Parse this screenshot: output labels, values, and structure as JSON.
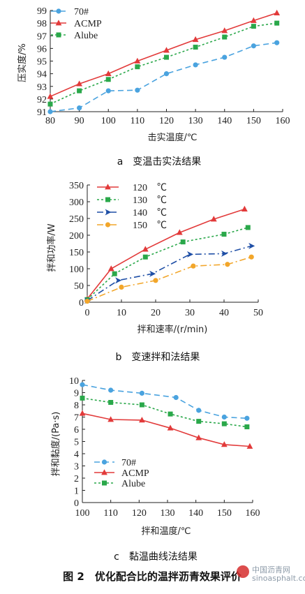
{
  "figure_title": "图 2　优化配合比的温拌沥青效果评价",
  "watermark": {
    "text": "中国沥青网",
    "url": "sinoasphalt.com"
  },
  "colors": {
    "blue": "#4aa3df",
    "red": "#e23a3a",
    "green": "#2aa84a",
    "orange": "#f2a62a",
    "navy": "#1f4fa6"
  },
  "chart_data": [
    {
      "type": "line",
      "caption": "a　变温击实法结果",
      "xlabel": "击实温度/℃",
      "ylabel": "压实度/%",
      "xlim": [
        80,
        160
      ],
      "ylim": [
        91,
        99
      ],
      "xticks": [
        80,
        90,
        100,
        110,
        120,
        130,
        140,
        150,
        160
      ],
      "yticks": [
        91,
        92,
        93,
        94,
        95,
        96,
        97,
        98,
        99
      ],
      "legend_position": "top-left",
      "series": [
        {
          "name": "70#",
          "color": "#4aa3df",
          "dash": "8,5",
          "marker": "circle",
          "x": [
            80,
            90,
            100,
            110,
            120,
            130,
            140,
            150,
            158
          ],
          "y": [
            91.0,
            91.3,
            92.65,
            92.7,
            94.0,
            94.7,
            95.3,
            96.2,
            96.45
          ]
        },
        {
          "name": "ACMP",
          "color": "#e23a3a",
          "dash": "",
          "marker": "triangle",
          "x": [
            80,
            90,
            100,
            110,
            120,
            130,
            140,
            150,
            158
          ],
          "y": [
            92.2,
            93.2,
            94.0,
            95.0,
            95.85,
            96.7,
            97.4,
            98.2,
            98.8
          ]
        },
        {
          "name": "Alube",
          "color": "#2aa84a",
          "dash": "3,3",
          "marker": "square",
          "x": [
            80,
            90,
            100,
            110,
            120,
            130,
            140,
            150,
            158
          ],
          "y": [
            91.6,
            92.65,
            93.55,
            94.55,
            95.3,
            96.1,
            96.9,
            97.75,
            98.0
          ]
        }
      ]
    },
    {
      "type": "line",
      "caption": "b　变速拌和法结果",
      "xlabel": "拌和速率/(r/min)",
      "ylabel": "拌和功率/W",
      "xlim": [
        0,
        50
      ],
      "ylim": [
        0,
        350
      ],
      "xticks": [
        0,
        10,
        20,
        30,
        40,
        50
      ],
      "yticks": [
        0,
        50,
        100,
        150,
        200,
        250,
        300,
        350
      ],
      "legend_position": "top-left",
      "series": [
        {
          "name": "120　℃",
          "color": "#e23a3a",
          "dash": "",
          "marker": "triangle",
          "x": [
            0,
            7,
            17,
            27,
            37,
            46
          ],
          "y": [
            10,
            100,
            158,
            208,
            248,
            278
          ]
        },
        {
          "name": "130　℃",
          "color": "#2aa84a",
          "dash": "3,3",
          "marker": "square",
          "x": [
            0,
            8,
            17,
            28,
            40,
            47
          ],
          "y": [
            8,
            85,
            135,
            180,
            203,
            223
          ]
        },
        {
          "name": "140　℃",
          "color": "#1f4fa6",
          "dash": "9,4,2,4",
          "marker": "arrow",
          "x": [
            0,
            9,
            19,
            30,
            40,
            48
          ],
          "y": [
            5,
            65,
            85,
            143,
            145,
            168
          ]
        },
        {
          "name": "150　℃",
          "color": "#f2a62a",
          "dash": "9,4,2,4",
          "marker": "circle",
          "x": [
            0,
            10,
            20,
            31,
            41,
            48
          ],
          "y": [
            3,
            45,
            65,
            108,
            113,
            135
          ]
        }
      ]
    },
    {
      "type": "line",
      "caption": "c　黏温曲线法结果",
      "xlabel": "拌和温度/℃",
      "ylabel": "拌和黏度/(Pa·s)",
      "xlim": [
        100,
        160
      ],
      "ylim": [
        0,
        10
      ],
      "xticks": [
        100,
        110,
        120,
        130,
        140,
        150,
        160
      ],
      "yticks": [
        0,
        1,
        2,
        3,
        4,
        5,
        6,
        7,
        8,
        9,
        10
      ],
      "legend_position": "bottom-left",
      "series": [
        {
          "name": "70#",
          "color": "#4aa3df",
          "dash": "8,5",
          "marker": "circle",
          "x": [
            100,
            110,
            121,
            133,
            141,
            150,
            158
          ],
          "y": [
            9.65,
            9.2,
            8.95,
            8.6,
            7.55,
            7.0,
            6.9
          ]
        },
        {
          "name": "ACMP",
          "color": "#e23a3a",
          "dash": "",
          "marker": "triangle",
          "x": [
            100,
            110,
            121,
            131,
            141,
            150,
            159
          ],
          "y": [
            7.3,
            6.8,
            6.75,
            6.1,
            5.3,
            4.75,
            4.6
          ]
        },
        {
          "name": "Alube",
          "color": "#2aa84a",
          "dash": "3,3",
          "marker": "square",
          "x": [
            100,
            110,
            121,
            131,
            141,
            150,
            158
          ],
          "y": [
            8.55,
            8.2,
            8.0,
            7.25,
            6.65,
            6.45,
            6.2
          ]
        }
      ]
    }
  ]
}
